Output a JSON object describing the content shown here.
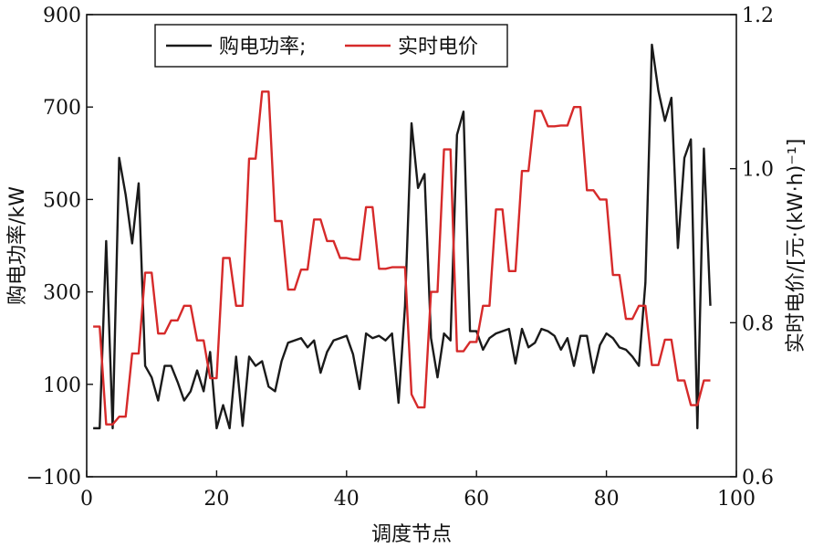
{
  "chart_data": {
    "type": "line",
    "xlabel": "调度节点",
    "ylabel_left": "购电功率/kW",
    "ylabel_right": "实时电价/[元·(kW·h)⁻¹]",
    "xlim": [
      0,
      100
    ],
    "xticks": [
      0,
      20,
      40,
      60,
      80,
      100
    ],
    "ylim_left": [
      -100,
      900
    ],
    "yticks_left": [
      -100,
      100,
      300,
      500,
      700,
      900
    ],
    "ylim_right": [
      0.6,
      1.2
    ],
    "yticks_right": [
      0.6,
      0.8,
      1.0,
      1.2
    ],
    "legend_position": "top-left",
    "series": [
      {
        "name": "购电功率;",
        "axis": "left",
        "color": "#1a1a1a",
        "x": [
          1,
          2,
          3,
          4,
          5,
          6,
          7,
          8,
          9,
          10,
          11,
          12,
          13,
          14,
          15,
          16,
          17,
          18,
          19,
          20,
          21,
          22,
          23,
          24,
          25,
          26,
          27,
          28,
          29,
          30,
          31,
          32,
          33,
          34,
          35,
          36,
          37,
          38,
          39,
          40,
          41,
          42,
          43,
          44,
          45,
          46,
          47,
          48,
          49,
          50,
          51,
          52,
          53,
          54,
          55,
          56,
          57,
          58,
          59,
          60,
          61,
          62,
          63,
          64,
          65,
          66,
          67,
          68,
          69,
          70,
          71,
          72,
          73,
          74,
          75,
          76,
          77,
          78,
          79,
          80,
          81,
          82,
          83,
          84,
          85,
          86,
          87,
          88,
          89,
          90,
          91,
          92,
          93,
          94,
          95,
          96
        ],
        "values": [
          5,
          5,
          410,
          5,
          590,
          510,
          405,
          535,
          140,
          115,
          65,
          140,
          140,
          105,
          65,
          85,
          130,
          85,
          170,
          5,
          55,
          5,
          160,
          10,
          160,
          140,
          150,
          95,
          85,
          150,
          190,
          195,
          200,
          180,
          195,
          125,
          170,
          195,
          200,
          205,
          165,
          90,
          210,
          200,
          205,
          195,
          210,
          60,
          270,
          665,
          525,
          555,
          200,
          115,
          210,
          195,
          640,
          690,
          215,
          215,
          175,
          200,
          210,
          215,
          220,
          145,
          220,
          180,
          190,
          220,
          215,
          205,
          175,
          200,
          140,
          205,
          205,
          125,
          185,
          210,
          200,
          180,
          175,
          160,
          140,
          320,
          835,
          735,
          670,
          720,
          395,
          590,
          630,
          5,
          610,
          270
        ]
      },
      {
        "name": "实时电价",
        "axis": "right",
        "color": "#d62a2a",
        "x": [
          1,
          2,
          3,
          4,
          5,
          6,
          7,
          8,
          9,
          10,
          11,
          12,
          13,
          14,
          15,
          16,
          17,
          18,
          19,
          20,
          21,
          22,
          23,
          24,
          25,
          26,
          27,
          28,
          29,
          30,
          31,
          32,
          33,
          34,
          35,
          36,
          37,
          38,
          39,
          40,
          41,
          42,
          43,
          44,
          45,
          46,
          47,
          48,
          49,
          50,
          51,
          52,
          53,
          54,
          55,
          56,
          57,
          58,
          59,
          60,
          61,
          62,
          63,
          64,
          65,
          66,
          67,
          68,
          69,
          70,
          71,
          72,
          73,
          74,
          75,
          76,
          77,
          78,
          79,
          80,
          81,
          82,
          83,
          84,
          85,
          86,
          87,
          88,
          89,
          90,
          91,
          92,
          93,
          94,
          95,
          96
        ],
        "values": [
          0.795,
          0.795,
          0.668,
          0.668,
          0.678,
          0.678,
          0.76,
          0.76,
          0.865,
          0.865,
          0.786,
          0.786,
          0.803,
          0.803,
          0.822,
          0.822,
          0.777,
          0.777,
          0.728,
          0.728,
          0.884,
          0.884,
          0.822,
          0.822,
          1.013,
          1.013,
          1.1,
          1.1,
          0.932,
          0.932,
          0.843,
          0.843,
          0.869,
          0.869,
          0.934,
          0.934,
          0.906,
          0.906,
          0.884,
          0.884,
          0.882,
          0.882,
          0.95,
          0.95,
          0.87,
          0.87,
          0.872,
          0.872,
          0.872,
          0.707,
          0.69,
          0.69,
          0.84,
          0.84,
          1.025,
          1.025,
          0.763,
          0.763,
          0.775,
          0.775,
          0.822,
          0.822,
          0.947,
          0.947,
          0.867,
          0.867,
          0.997,
          0.997,
          1.075,
          1.075,
          1.055,
          1.055,
          1.056,
          1.056,
          1.08,
          1.08,
          0.972,
          0.972,
          0.96,
          0.96,
          0.862,
          0.862,
          0.805,
          0.805,
          0.822,
          0.822,
          0.745,
          0.745,
          0.778,
          0.778,
          0.725,
          0.725,
          0.693,
          0.693,
          0.725,
          0.725
        ]
      }
    ]
  }
}
